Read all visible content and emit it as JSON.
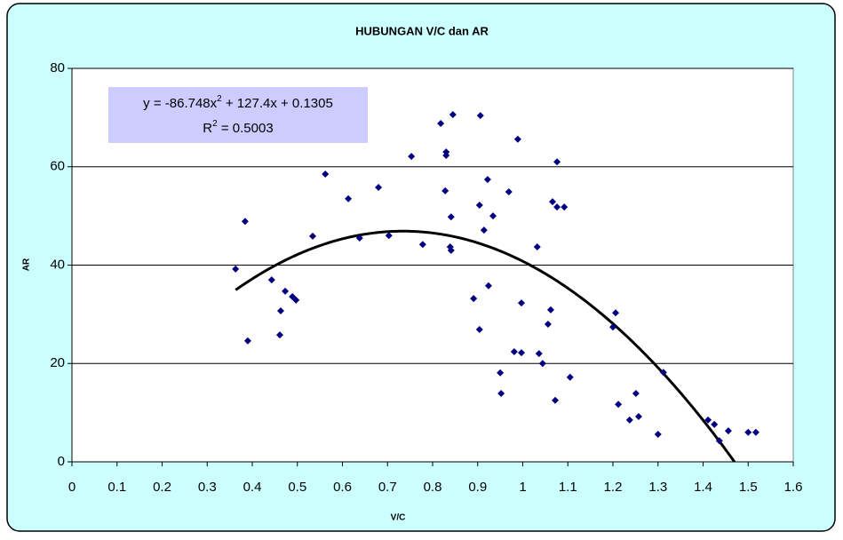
{
  "chart_data": {
    "type": "scatter",
    "title": "HUBUNGAN  V/C  dan  AR",
    "x_label": "V/C",
    "y_label": "AR",
    "xlim": [
      0,
      1.6
    ],
    "ylim": [
      0,
      80
    ],
    "xticks": [
      0,
      0.1,
      0.2,
      0.3,
      0.4,
      0.5,
      0.6,
      0.7,
      0.8,
      0.9,
      1,
      1.1,
      1.2,
      1.3,
      1.4,
      1.5,
      1.6
    ],
    "yticks": [
      0,
      20,
      40,
      60,
      80
    ],
    "grid": true,
    "color": "#000080",
    "x": [
      0.363,
      0.384,
      0.39,
      0.443,
      0.463,
      0.461,
      0.473,
      0.489,
      0.497,
      0.534,
      0.562,
      0.613,
      0.638,
      0.68,
      0.703,
      0.753,
      0.778,
      0.818,
      0.828,
      0.83,
      0.83,
      0.841,
      0.839,
      0.841,
      0.845,
      0.891,
      0.904,
      0.906,
      0.904,
      0.914,
      0.922,
      0.924,
      0.934,
      0.95,
      0.952,
      0.969,
      0.981,
      0.989,
      0.997,
      0.997,
      1.032,
      1.036,
      1.044,
      1.056,
      1.062,
      1.066,
      1.076,
      1.076,
      1.072,
      1.092,
      1.105,
      1.2,
      1.206,
      1.212,
      1.237,
      1.251,
      1.257,
      1.3,
      1.312,
      1.411,
      1.425,
      1.436,
      1.456,
      1.5,
      1.517
    ],
    "values": [
      39.2,
      48.9,
      24.6,
      37.0,
      30.7,
      25.8,
      34.7,
      33.6,
      32.9,
      45.9,
      58.5,
      53.5,
      45.5,
      55.8,
      46.0,
      62.1,
      44.2,
      68.8,
      55.1,
      63.0,
      62.3,
      49.8,
      43.7,
      43.0,
      70.6,
      33.2,
      52.2,
      70.4,
      26.9,
      47.1,
      57.4,
      35.8,
      50.0,
      18.1,
      13.9,
      54.9,
      22.4,
      65.6,
      22.2,
      32.3,
      43.7,
      22.0,
      20.0,
      28.0,
      30.9,
      52.9,
      51.8,
      61.0,
      12.5,
      51.8,
      17.2,
      27.4,
      30.3,
      11.7,
      8.5,
      13.9,
      9.2,
      5.6,
      18.2,
      8.5,
      7.6,
      4.3,
      6.3,
      6.0,
      6.0
    ],
    "trendline": {
      "type": "polynomial",
      "color": "#000000",
      "coefficients": [
        -86.748,
        127.4,
        0.1305
      ],
      "x_range": [
        0.363,
        1.517
      ],
      "equation": [
        "y = -86.748x",
        "2",
        " + 127.4x + 0.1305"
      ],
      "r_squared": [
        "R",
        "2",
        " = 0.5003"
      ]
    }
  }
}
